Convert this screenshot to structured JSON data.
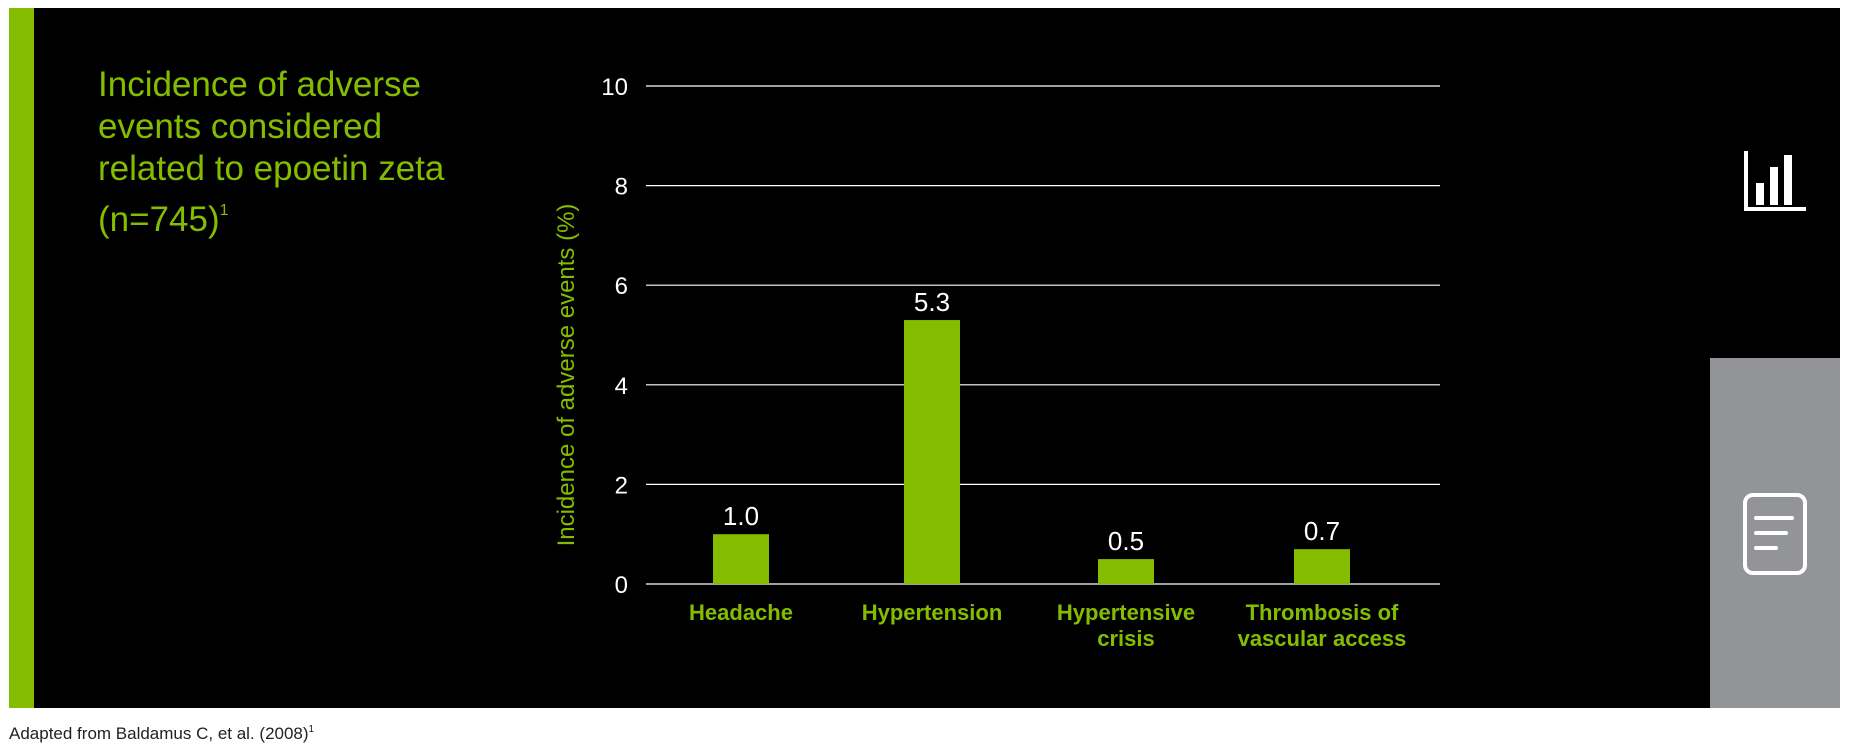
{
  "title": {
    "text": "Incidence of adverse events considered related to epoetin zeta (n=745)",
    "superscript": "1"
  },
  "colors": {
    "accent": "#84bd00",
    "background": "#000000",
    "side_panel": "#929497"
  },
  "chart_data": {
    "type": "bar",
    "title": "",
    "xlabel": "",
    "ylabel": "Incidence of adverse events (%)",
    "ylim": [
      0,
      10
    ],
    "yticks": [
      0,
      2,
      4,
      6,
      8,
      10
    ],
    "grid": true,
    "categories": [
      [
        "Headache"
      ],
      [
        "Hypertension"
      ],
      [
        "Hypertensive",
        "crisis"
      ],
      [
        "Thrombosis of",
        "vascular access"
      ]
    ],
    "values": [
      1.0,
      5.3,
      0.5,
      0.7
    ],
    "value_labels": [
      "1.0",
      "5.3",
      "0.5",
      "0.7"
    ],
    "bar_color": "#84bd00"
  },
  "side_nav": {
    "chart_icon": "bar-chart-icon",
    "document_icon": "document-icon"
  },
  "footer": {
    "text": "Adapted from Baldamus C, et al. (2008)",
    "superscript": "1"
  }
}
